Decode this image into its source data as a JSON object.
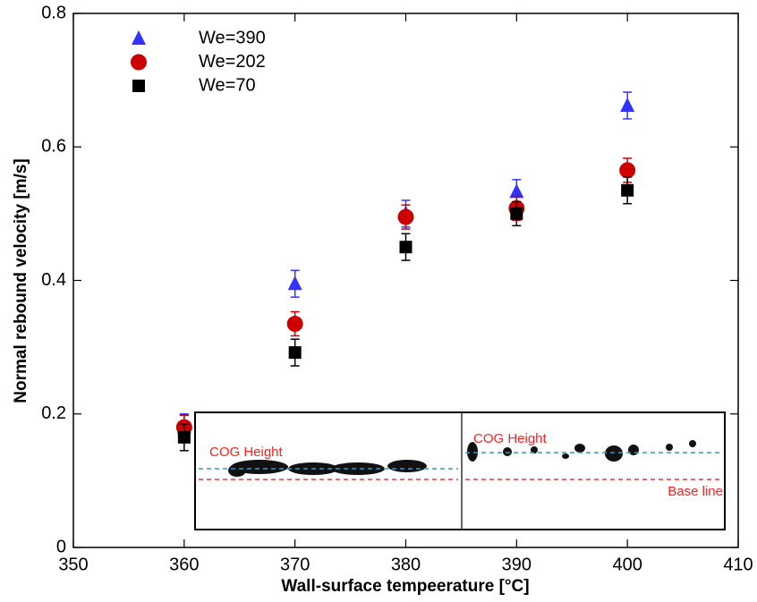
{
  "chart_data": {
    "type": "scatter",
    "x_label": "Wall-surface tempeerature [°C]",
    "y_label": "Normal rebound velocity [m/s]",
    "xlim": [
      350,
      410
    ],
    "xticks": [
      350,
      360,
      370,
      380,
      390,
      400,
      410
    ],
    "ylim": [
      0,
      0.8
    ],
    "yticks": [
      0,
      0.2,
      0.4,
      0.6,
      0.8
    ],
    "grid": false,
    "legend": "upper left",
    "series": [
      {
        "name": "We=390",
        "color": "#3333ff",
        "marker": "triangle",
        "x": [
          360,
          370,
          380,
          390,
          400
        ],
        "values": [
          0.18,
          0.395,
          0.5,
          0.533,
          0.662
        ],
        "errors": [
          0.02,
          0.02,
          0.02,
          0.018,
          0.02
        ]
      },
      {
        "name": "We=202",
        "color": "#cc0000",
        "marker": "circle",
        "x": [
          360,
          370,
          380,
          390,
          400
        ],
        "values": [
          0.18,
          0.335,
          0.495,
          0.508,
          0.565
        ],
        "errors": [
          0.018,
          0.018,
          0.018,
          0.018,
          0.018
        ]
      },
      {
        "name": "We=70",
        "color": "#000000",
        "marker": "square",
        "x": [
          360,
          370,
          380,
          390,
          400
        ],
        "values": [
          0.165,
          0.292,
          0.45,
          0.5,
          0.535
        ],
        "errors": [
          0.02,
          0.02,
          0.02,
          0.018,
          0.02
        ]
      }
    ],
    "inset": {
      "left_label": "COG Height",
      "right_label": "COG Height",
      "base_label": "Base line"
    }
  }
}
